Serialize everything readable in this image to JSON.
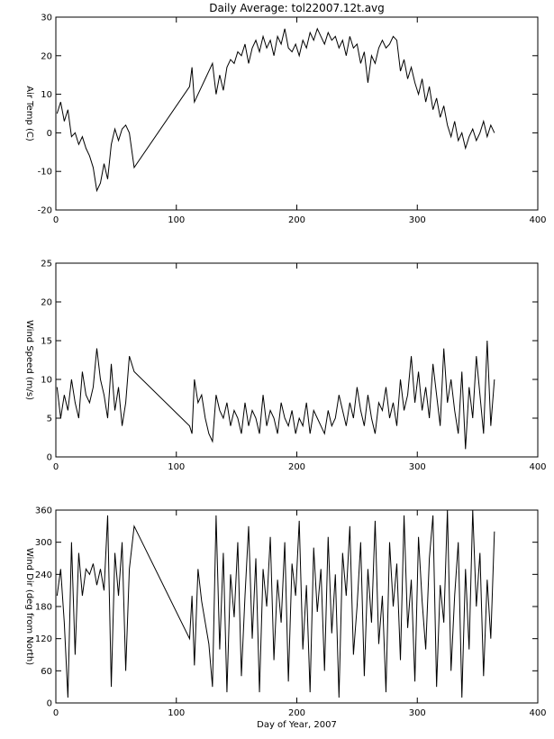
{
  "chart_data": [
    {
      "type": "line",
      "title": "Daily Average: tol22007.12t.avg",
      "ylabel": "Air Temp (C)",
      "x": [
        1,
        4,
        7,
        10,
        13,
        16,
        19,
        22,
        25,
        28,
        31,
        34,
        37,
        40,
        43,
        46,
        49,
        52,
        55,
        58,
        61,
        65,
        111,
        113,
        115,
        118,
        121,
        124,
        127,
        130,
        133,
        136,
        139,
        142,
        145,
        148,
        151,
        154,
        157,
        160,
        163,
        166,
        169,
        172,
        175,
        178,
        181,
        184,
        187,
        190,
        193,
        196,
        199,
        202,
        205,
        208,
        211,
        214,
        217,
        220,
        223,
        226,
        229,
        232,
        235,
        238,
        241,
        244,
        247,
        250,
        253,
        256,
        259,
        262,
        265,
        268,
        271,
        274,
        277,
        280,
        283,
        286,
        289,
        292,
        295,
        298,
        301,
        304,
        307,
        310,
        313,
        316,
        319,
        322,
        325,
        328,
        331,
        334,
        337,
        340,
        343,
        346,
        349,
        352,
        355,
        358,
        361,
        364
      ],
      "values": [
        5,
        8,
        3,
        6,
        -1,
        0,
        -3,
        -1,
        -4,
        -6,
        -9,
        -15,
        -13,
        -8,
        -12,
        -3,
        1,
        -2,
        1,
        2,
        0,
        -9,
        12,
        17,
        8,
        10,
        12,
        14,
        16,
        18,
        10,
        15,
        11,
        17,
        19,
        18,
        21,
        20,
        23,
        18,
        22,
        24,
        21,
        25,
        22,
        24,
        20,
        25,
        23,
        27,
        22,
        21,
        23,
        20,
        24,
        22,
        26,
        24,
        27,
        25,
        23,
        26,
        24,
        25,
        22,
        24,
        20,
        25,
        22,
        23,
        18,
        21,
        13,
        20,
        18,
        22,
        24,
        22,
        23,
        25,
        24,
        16,
        19,
        14,
        17,
        13,
        10,
        14,
        8,
        12,
        6,
        9,
        4,
        7,
        2,
        -1,
        3,
        -2,
        0,
        -4,
        -1,
        1,
        -2,
        0,
        3,
        -1,
        2,
        0
      ],
      "color": "#000000",
      "xlim": [
        0,
        400
      ],
      "xticks": [
        0,
        100,
        200,
        300,
        400
      ],
      "ylim": [
        -20,
        30
      ],
      "yticks": [
        -20,
        -10,
        0,
        10,
        20,
        30
      ]
    },
    {
      "type": "line",
      "ylabel": "Wind Speed (m/s)",
      "x": [
        1,
        4,
        7,
        10,
        13,
        16,
        19,
        22,
        25,
        28,
        31,
        34,
        37,
        40,
        43,
        46,
        49,
        52,
        55,
        58,
        61,
        65,
        111,
        113,
        115,
        118,
        121,
        124,
        127,
        130,
        133,
        136,
        139,
        142,
        145,
        148,
        151,
        154,
        157,
        160,
        163,
        166,
        169,
        172,
        175,
        178,
        181,
        184,
        187,
        190,
        193,
        196,
        199,
        202,
        205,
        208,
        211,
        214,
        217,
        220,
        223,
        226,
        229,
        232,
        235,
        238,
        241,
        244,
        247,
        250,
        253,
        256,
        259,
        262,
        265,
        268,
        271,
        274,
        277,
        280,
        283,
        286,
        289,
        292,
        295,
        298,
        301,
        304,
        307,
        310,
        313,
        316,
        319,
        322,
        325,
        328,
        331,
        334,
        337,
        340,
        343,
        346,
        349,
        352,
        355,
        358,
        361,
        364
      ],
      "values": [
        9,
        5,
        8,
        6,
        10,
        7,
        5,
        11,
        8,
        7,
        9,
        14,
        10,
        8,
        5,
        12,
        6,
        9,
        4,
        7,
        13,
        11,
        4,
        3,
        10,
        7,
        8,
        5,
        3,
        2,
        8,
        6,
        5,
        7,
        4,
        6,
        5,
        3,
        7,
        4,
        6,
        5,
        3,
        8,
        4,
        6,
        5,
        3,
        7,
        5,
        4,
        6,
        3,
        5,
        4,
        7,
        3,
        6,
        5,
        4,
        3,
        6,
        4,
        5,
        8,
        6,
        4,
        7,
        5,
        9,
        6,
        4,
        8,
        5,
        3,
        7,
        6,
        9,
        5,
        7,
        4,
        10,
        6,
        8,
        13,
        7,
        11,
        6,
        9,
        5,
        12,
        8,
        4,
        14,
        7,
        10,
        6,
        3,
        11,
        1,
        9,
        5,
        13,
        8,
        3,
        15,
        4,
        10
      ],
      "color": "#000000",
      "xlim": [
        0,
        400
      ],
      "xticks": [
        0,
        100,
        200,
        300,
        400
      ],
      "ylim": [
        0,
        25
      ],
      "yticks": [
        0,
        5,
        10,
        15,
        20,
        25
      ]
    },
    {
      "type": "line",
      "ylabel": "Wind Dir (deg from North)",
      "xlabel": "Day of Year, 2007",
      "x": [
        1,
        4,
        7,
        10,
        13,
        16,
        19,
        22,
        25,
        28,
        31,
        34,
        37,
        40,
        43,
        46,
        49,
        52,
        55,
        58,
        61,
        65,
        111,
        113,
        115,
        118,
        121,
        124,
        127,
        130,
        133,
        136,
        139,
        142,
        145,
        148,
        151,
        154,
        157,
        160,
        163,
        166,
        169,
        172,
        175,
        178,
        181,
        184,
        187,
        190,
        193,
        196,
        199,
        202,
        205,
        208,
        211,
        214,
        217,
        220,
        223,
        226,
        229,
        232,
        235,
        238,
        241,
        244,
        247,
        250,
        253,
        256,
        259,
        262,
        265,
        268,
        271,
        274,
        277,
        280,
        283,
        286,
        289,
        292,
        295,
        298,
        301,
        304,
        307,
        310,
        313,
        316,
        319,
        322,
        325,
        328,
        331,
        334,
        337,
        340,
        343,
        346,
        349,
        352,
        355,
        358,
        361,
        364
      ],
      "values": [
        200,
        250,
        150,
        10,
        300,
        90,
        280,
        200,
        250,
        240,
        260,
        220,
        250,
        210,
        350,
        30,
        280,
        200,
        300,
        60,
        250,
        330,
        120,
        200,
        70,
        250,
        190,
        150,
        110,
        30,
        350,
        100,
        280,
        20,
        240,
        160,
        300,
        50,
        200,
        330,
        120,
        270,
        20,
        250,
        180,
        310,
        80,
        230,
        150,
        300,
        40,
        260,
        200,
        340,
        100,
        220,
        20,
        290,
        170,
        250,
        60,
        310,
        130,
        240,
        10,
        280,
        200,
        330,
        90,
        180,
        300,
        50,
        250,
        150,
        340,
        110,
        200,
        20,
        300,
        180,
        260,
        80,
        350,
        140,
        230,
        40,
        310,
        190,
        100,
        270,
        350,
        30,
        220,
        150,
        360,
        60,
        200,
        300,
        10,
        250,
        100,
        360,
        180,
        280,
        50,
        230,
        120,
        320
      ],
      "color": "#000000",
      "xlim": [
        0,
        400
      ],
      "xticks": [
        0,
        100,
        200,
        300,
        400
      ],
      "ylim": [
        0,
        360
      ],
      "yticks": [
        0,
        60,
        120,
        180,
        240,
        300,
        360
      ]
    }
  ]
}
